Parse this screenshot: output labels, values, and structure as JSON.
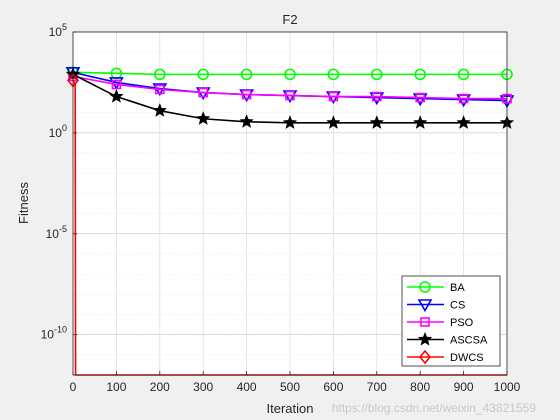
{
  "chart_data": {
    "type": "line",
    "title": "F2",
    "xlabel": "Iteration",
    "ylabel": "Fitness",
    "xlim": [
      0,
      1000
    ],
    "yscale": "log",
    "ylim_log10": [
      -12,
      5
    ],
    "grid": true,
    "legend_position": "bottom-right",
    "x_ticks": [
      "0",
      "100",
      "200",
      "300",
      "400",
      "500",
      "600",
      "700",
      "800",
      "900",
      "1000"
    ],
    "y_ticks": [
      {
        "base": "10",
        "exp": "5"
      },
      {
        "base": "10",
        "exp": "0"
      },
      {
        "base": "10",
        "exp": "-5"
      },
      {
        "base": "10",
        "exp": "-10"
      }
    ],
    "x": [
      0,
      100,
      200,
      300,
      400,
      500,
      600,
      700,
      800,
      900,
      1000
    ],
    "series": [
      {
        "name": "BA",
        "color": "#00ff00",
        "marker": "circle",
        "log10_values": [
          3.0,
          2.95,
          2.9,
          2.9,
          2.9,
          2.9,
          2.9,
          2.9,
          2.9,
          2.9,
          2.9
        ]
      },
      {
        "name": "CS",
        "color": "#0000ff",
        "marker": "triangle-down",
        "log10_values": [
          3.0,
          2.5,
          2.2,
          2.0,
          1.9,
          1.85,
          1.8,
          1.75,
          1.7,
          1.65,
          1.6
        ]
      },
      {
        "name": "PSO",
        "color": "#ff00ff",
        "marker": "square",
        "log10_values": [
          2.8,
          2.4,
          2.15,
          2.0,
          1.9,
          1.85,
          1.8,
          1.8,
          1.75,
          1.7,
          1.7
        ]
      },
      {
        "name": "ASCSA",
        "color": "#000000",
        "marker": "star",
        "log10_values": [
          2.9,
          1.8,
          1.1,
          0.7,
          0.55,
          0.5,
          0.5,
          0.5,
          0.5,
          0.5,
          0.5
        ]
      },
      {
        "name": "DWCS",
        "color": "#ff0000",
        "marker": "diamond",
        "log10_values": [
          2.6,
          -12,
          -12,
          -12,
          -12,
          -12,
          -12,
          -12,
          -12,
          -12,
          -12
        ]
      }
    ]
  },
  "watermark": "https://blog.csdn.net/weixin_43821559"
}
